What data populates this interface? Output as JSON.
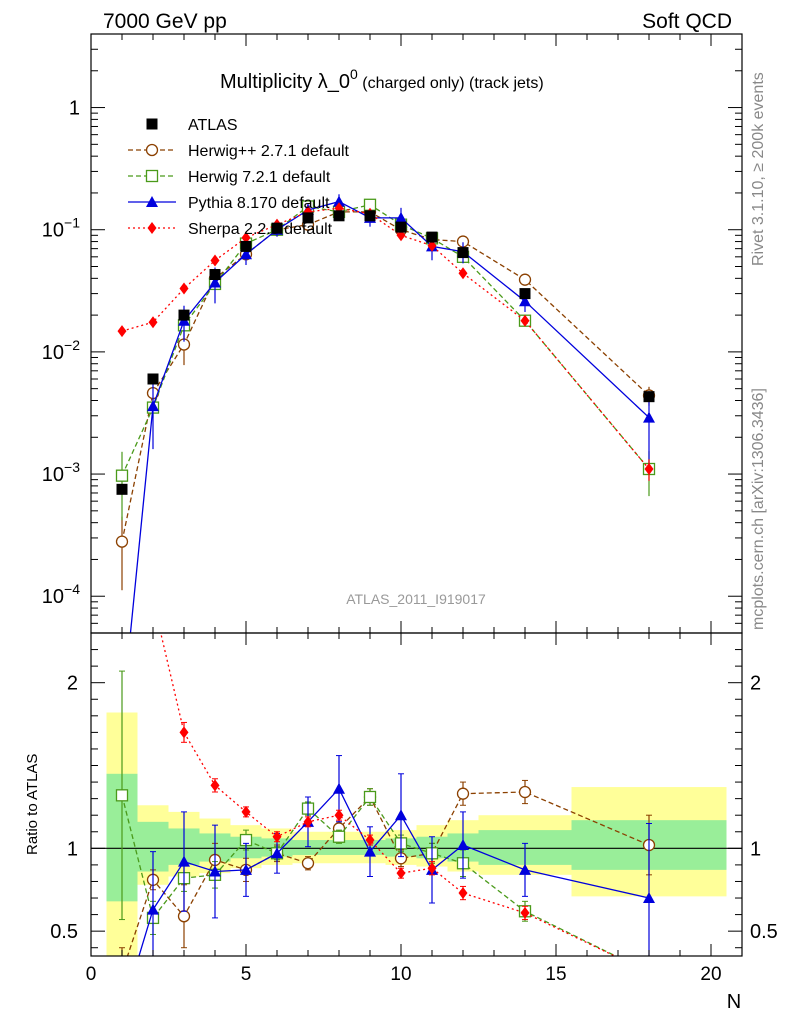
{
  "header": {
    "left": "7000 GeV pp",
    "right": "Soft QCD"
  },
  "side_labels": {
    "rivet": "Rivet 3.1.10, ≥ 200k events",
    "mcplots": "mcplots.cern.ch [arXiv:1306.3436]"
  },
  "chart_data": {
    "type": "line",
    "title": "Multiplicity λ_0⁰ (charged only) (track jets)",
    "title_main": "Multiplicity λ_0",
    "title_sup": "0",
    "title_sub": " (charged only) (track jets)",
    "analysis_id": "ATLAS_2011_I919017",
    "xlabel": "N",
    "ylabel_ratio": "Ratio to ATLAS",
    "xlim": [
      0,
      21
    ],
    "ylim_main": [
      5e-05,
      4
    ],
    "ylim_ratio": [
      0.35,
      2.3
    ],
    "yscale_main": "log",
    "x_ticks": [
      0,
      5,
      10,
      15,
      20
    ],
    "x_tick_labels": [
      "0",
      "5",
      "10",
      "15",
      "20"
    ],
    "y_ticks_main": [
      0.0001,
      0.001,
      0.01,
      0.1,
      1
    ],
    "y_tick_labels_main": [
      {
        "base": "10",
        "exp": "−4"
      },
      {
        "base": "10",
        "exp": "−3"
      },
      {
        "base": "10",
        "exp": "−2"
      },
      {
        "base": "10",
        "exp": "−1"
      },
      {
        "base": "1",
        "exp": ""
      }
    ],
    "y_ticks_ratio": [
      0.5,
      1,
      2
    ],
    "y_tick_labels_ratio": [
      "0.5",
      "1",
      "2"
    ],
    "legend_position": "top-left",
    "data": {
      "name": "ATLAS",
      "x": [
        1,
        2,
        3,
        4,
        5,
        6,
        7,
        8,
        9,
        10,
        11,
        12,
        14,
        18
      ],
      "y": [
        0.00075,
        0.006,
        0.02,
        0.043,
        0.073,
        0.103,
        0.125,
        0.13,
        0.13,
        0.105,
        0.087,
        0.065,
        0.03,
        0.0043
      ]
    },
    "ratio_bands": [
      {
        "xlo": 0.5,
        "xhi": 1.5,
        "green": [
          0.68,
          1.45
        ],
        "yellow": [
          0.35,
          1.82
        ]
      },
      {
        "xlo": 1.5,
        "xhi": 2.5,
        "green": [
          0.86,
          1.16
        ],
        "yellow": [
          0.78,
          1.26
        ]
      },
      {
        "xlo": 2.5,
        "xhi": 3.5,
        "green": [
          0.9,
          1.12
        ],
        "yellow": [
          0.83,
          1.22
        ]
      },
      {
        "xlo": 3.5,
        "xhi": 4.5,
        "green": [
          0.92,
          1.09
        ],
        "yellow": [
          0.85,
          1.18
        ]
      },
      {
        "xlo": 4.5,
        "xhi": 5.5,
        "green": [
          0.94,
          1.07
        ],
        "yellow": [
          0.88,
          1.14
        ]
      },
      {
        "xlo": 5.5,
        "xhi": 6.5,
        "green": [
          0.95,
          1.06
        ],
        "yellow": [
          0.9,
          1.12
        ]
      },
      {
        "xlo": 6.5,
        "xhi": 7.5,
        "green": [
          0.96,
          1.05
        ],
        "yellow": [
          0.91,
          1.1
        ]
      },
      {
        "xlo": 7.5,
        "xhi": 8.5,
        "green": [
          0.96,
          1.05
        ],
        "yellow": [
          0.91,
          1.1
        ]
      },
      {
        "xlo": 8.5,
        "xhi": 9.5,
        "green": [
          0.96,
          1.05
        ],
        "yellow": [
          0.91,
          1.1
        ]
      },
      {
        "xlo": 9.5,
        "xhi": 10.5,
        "green": [
          0.95,
          1.06
        ],
        "yellow": [
          0.9,
          1.11
        ]
      },
      {
        "xlo": 10.5,
        "xhi": 11.5,
        "green": [
          0.94,
          1.07
        ],
        "yellow": [
          0.89,
          1.14
        ]
      },
      {
        "xlo": 11.5,
        "xhi": 12.5,
        "green": [
          0.92,
          1.09
        ],
        "yellow": [
          0.86,
          1.17
        ]
      },
      {
        "xlo": 12.5,
        "xhi": 15.5,
        "green": [
          0.9,
          1.11
        ],
        "yellow": [
          0.84,
          1.2
        ]
      },
      {
        "xlo": 15.5,
        "xhi": 20.5,
        "green": [
          0.87,
          1.17
        ],
        "yellow": [
          0.71,
          1.37
        ]
      }
    ],
    "series": [
      {
        "name": "Herwig++ 2.7.1 default",
        "color": "#8b4000",
        "marker": "circle-open",
        "dash": "dashed",
        "x": [
          1,
          2,
          3,
          4,
          5,
          6,
          7,
          8,
          9,
          10,
          11,
          12,
          14,
          18
        ],
        "y": [
          0.00028,
          0.0046,
          0.0115,
          0.04,
          0.063,
          0.1,
          0.11,
          0.14,
          0.14,
          0.1,
          0.083,
          0.08,
          0.039,
          0.0044
        ],
        "ratio": [
          0.25,
          0.81,
          0.59,
          0.93,
          0.87,
          0.97,
          0.91,
          1.12,
          1.31,
          0.94,
          0.97,
          1.33,
          1.34,
          1.02
        ],
        "ratio_err": [
          0.15,
          0.06,
          0.19,
          0.1,
          0.07,
          0.05,
          0.04,
          0.04,
          0.05,
          0.05,
          0.06,
          0.07,
          0.07,
          0.18
        ]
      },
      {
        "name": "Herwig 7.2.1 default",
        "color": "#4a9a1a",
        "marker": "square-open",
        "dash": "dashed",
        "x": [
          1,
          2,
          3,
          4,
          5,
          6,
          7,
          8,
          9,
          10,
          11,
          12,
          14,
          18
        ],
        "y": [
          0.00097,
          0.0035,
          0.0165,
          0.036,
          0.077,
          0.1,
          0.155,
          0.14,
          0.16,
          0.11,
          0.085,
          0.06,
          0.018,
          0.0011
        ],
        "ratio": [
          1.32,
          0.58,
          0.82,
          0.84,
          1.05,
          0.97,
          1.24,
          1.07,
          1.31,
          1.03,
          0.97,
          0.91,
          0.62,
          0.25
        ],
        "ratio_err": [
          0.75,
          0.1,
          0.08,
          0.08,
          0.06,
          0.04,
          0.04,
          0.04,
          0.05,
          0.05,
          0.06,
          0.08,
          0.06,
          0.1
        ]
      },
      {
        "name": "Pythia 8.170 default",
        "color": "#0000dd",
        "marker": "triangle",
        "dash": "solid",
        "x": [
          1,
          2,
          3,
          4,
          5,
          6,
          7,
          8,
          9,
          10,
          11,
          12,
          14,
          18
        ],
        "y": [
          1e-05,
          0.0036,
          0.018,
          0.037,
          0.063,
          0.1,
          0.145,
          0.17,
          0.125,
          0.125,
          0.073,
          0.066,
          0.026,
          0.0029
        ],
        "ratio": [
          0.01,
          0.63,
          0.92,
          0.86,
          0.87,
          0.97,
          1.16,
          1.36,
          0.98,
          1.2,
          0.87,
          1.02,
          0.87,
          0.7
        ],
        "ratio_err": [
          0.1,
          0.35,
          0.3,
          0.28,
          0.16,
          0.12,
          0.15,
          0.2,
          0.15,
          0.25,
          0.2,
          0.2,
          0.16,
          0.45
        ]
      },
      {
        "name": "Sherpa 2.2.9 default",
        "color": "#ff0000",
        "marker": "diamond",
        "dash": "dotted",
        "x": [
          1,
          2,
          3,
          4,
          5,
          6,
          7,
          8,
          9,
          10,
          11,
          12,
          14,
          18
        ],
        "y": [
          0.0148,
          0.0175,
          0.033,
          0.056,
          0.086,
          0.11,
          0.14,
          0.15,
          0.135,
          0.09,
          0.074,
          0.044,
          0.018,
          0.0011
        ],
        "ratio": [
          3.0,
          2.5,
          1.7,
          1.38,
          1.22,
          1.07,
          1.16,
          1.2,
          1.05,
          0.85,
          0.88,
          0.73,
          0.61,
          0.25
        ],
        "ratio_err": [
          0.1,
          0.1,
          0.06,
          0.04,
          0.03,
          0.03,
          0.03,
          0.03,
          0.03,
          0.03,
          0.04,
          0.04,
          0.04,
          0.05
        ]
      }
    ]
  }
}
